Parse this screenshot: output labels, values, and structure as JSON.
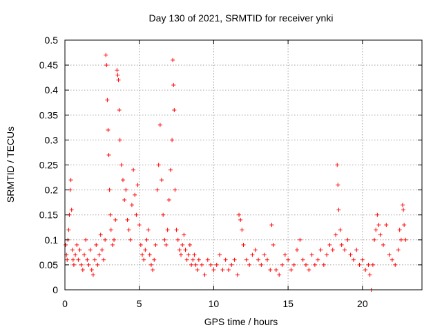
{
  "chart_data": {
    "type": "scatter",
    "title": "Day 130 of 2021, SRMTID for receiver ynki",
    "xlabel": "GPS time / hours",
    "ylabel": "SRMTID / TECUs",
    "xlim": [
      0,
      24
    ],
    "ylim": [
      0,
      0.5
    ],
    "xticks": [
      0,
      5,
      10,
      15,
      20
    ],
    "xtick_labels": [
      "0",
      "5",
      "10",
      "15",
      "20"
    ],
    "yticks": [
      0,
      0.05,
      0.1,
      0.15,
      0.2,
      0.25,
      0.3,
      0.35,
      0.4,
      0.45,
      0.5
    ],
    "ytick_labels": [
      "0",
      "0.05",
      "0.1",
      "0.15",
      "0.2",
      "0.25",
      "0.3",
      "0.35",
      "0.4",
      "0.45",
      "0.5"
    ],
    "grid": true,
    "marker": "plus",
    "color": "#ff0000",
    "series": [
      {
        "name": "SRMTID",
        "points": [
          [
            0.05,
            0.09
          ],
          [
            0.1,
            0.07
          ],
          [
            0.15,
            0.06
          ],
          [
            0.2,
            0.1
          ],
          [
            0.25,
            0.12
          ],
          [
            0.3,
            0.15
          ],
          [
            0.35,
            0.2
          ],
          [
            0.4,
            0.22
          ],
          [
            0.45,
            0.16
          ],
          [
            0.5,
            0.08
          ],
          [
            0.55,
            0.06
          ],
          [
            0.6,
            0.05
          ],
          [
            0.7,
            0.07
          ],
          [
            0.8,
            0.09
          ],
          [
            0.9,
            0.06
          ],
          [
            1.0,
            0.08
          ],
          [
            1.1,
            0.05
          ],
          [
            1.2,
            0.04
          ],
          [
            1.3,
            0.07
          ],
          [
            1.4,
            0.1
          ],
          [
            1.5,
            0.06
          ],
          [
            1.6,
            0.05
          ],
          [
            1.7,
            0.08
          ],
          [
            1.8,
            0.04
          ],
          [
            1.9,
            0.03
          ],
          [
            2.0,
            0.06
          ],
          [
            2.1,
            0.09
          ],
          [
            2.2,
            0.05
          ],
          [
            2.3,
            0.07
          ],
          [
            2.4,
            0.11
          ],
          [
            2.5,
            0.08
          ],
          [
            2.6,
            0.06
          ],
          [
            2.7,
            0.1
          ],
          [
            2.75,
            0.47
          ],
          [
            2.8,
            0.45
          ],
          [
            2.85,
            0.38
          ],
          [
            2.9,
            0.32
          ],
          [
            2.95,
            0.27
          ],
          [
            3.0,
            0.2
          ],
          [
            3.05,
            0.15
          ],
          [
            3.1,
            0.12
          ],
          [
            3.2,
            0.09
          ],
          [
            3.3,
            0.1
          ],
          [
            3.4,
            0.14
          ],
          [
            3.5,
            0.44
          ],
          [
            3.55,
            0.43
          ],
          [
            3.6,
            0.42
          ],
          [
            3.65,
            0.36
          ],
          [
            3.7,
            0.3
          ],
          [
            3.8,
            0.25
          ],
          [
            3.9,
            0.22
          ],
          [
            4.0,
            0.18
          ],
          [
            4.1,
            0.2
          ],
          [
            4.2,
            0.14
          ],
          [
            4.3,
            0.12
          ],
          [
            4.4,
            0.1
          ],
          [
            4.5,
            0.17
          ],
          [
            4.6,
            0.24
          ],
          [
            4.7,
            0.19
          ],
          [
            4.8,
            0.15
          ],
          [
            4.9,
            0.21
          ],
          [
            5.0,
            0.13
          ],
          [
            5.1,
            0.09
          ],
          [
            5.2,
            0.07
          ],
          [
            5.3,
            0.06
          ],
          [
            5.4,
            0.08
          ],
          [
            5.5,
            0.1
          ],
          [
            5.6,
            0.12
          ],
          [
            5.7,
            0.07
          ],
          [
            5.8,
            0.05
          ],
          [
            5.9,
            0.04
          ],
          [
            6.0,
            0.06
          ],
          [
            6.1,
            0.09
          ],
          [
            6.2,
            0.2
          ],
          [
            6.3,
            0.25
          ],
          [
            6.4,
            0.33
          ],
          [
            6.5,
            0.22
          ],
          [
            6.6,
            0.15
          ],
          [
            6.7,
            0.1
          ],
          [
            6.8,
            0.09
          ],
          [
            6.9,
            0.12
          ],
          [
            7.0,
            0.18
          ],
          [
            7.1,
            0.24
          ],
          [
            7.2,
            0.3
          ],
          [
            7.25,
            0.46
          ],
          [
            7.3,
            0.41
          ],
          [
            7.35,
            0.36
          ],
          [
            7.4,
            0.2
          ],
          [
            7.5,
            0.12
          ],
          [
            7.6,
            0.1
          ],
          [
            7.7,
            0.08
          ],
          [
            7.8,
            0.07
          ],
          [
            7.9,
            0.09
          ],
          [
            8.0,
            0.11
          ],
          [
            8.1,
            0.08
          ],
          [
            8.2,
            0.06
          ],
          [
            8.3,
            0.07
          ],
          [
            8.4,
            0.09
          ],
          [
            8.5,
            0.05
          ],
          [
            8.6,
            0.06
          ],
          [
            8.7,
            0.07
          ],
          [
            8.8,
            0.05
          ],
          [
            8.9,
            0.04
          ],
          [
            9.0,
            0.06
          ],
          [
            9.2,
            0.05
          ],
          [
            9.4,
            0.03
          ],
          [
            9.6,
            0.06
          ],
          [
            9.8,
            0.05
          ],
          [
            10.0,
            0.04
          ],
          [
            10.2,
            0.05
          ],
          [
            10.4,
            0.07
          ],
          [
            10.6,
            0.04
          ],
          [
            10.8,
            0.06
          ],
          [
            11.0,
            0.04
          ],
          [
            11.2,
            0.05
          ],
          [
            11.4,
            0.06
          ],
          [
            11.6,
            0.03
          ],
          [
            11.7,
            0.15
          ],
          [
            11.8,
            0.14
          ],
          [
            11.9,
            0.12
          ],
          [
            12.0,
            0.09
          ],
          [
            12.2,
            0.06
          ],
          [
            12.4,
            0.05
          ],
          [
            12.6,
            0.07
          ],
          [
            12.8,
            0.08
          ],
          [
            13.0,
            0.06
          ],
          [
            13.2,
            0.05
          ],
          [
            13.4,
            0.07
          ],
          [
            13.6,
            0.06
          ],
          [
            13.8,
            0.04
          ],
          [
            13.9,
            0.13
          ],
          [
            14.0,
            0.09
          ],
          [
            14.2,
            0.04
          ],
          [
            14.4,
            0.03
          ],
          [
            14.6,
            0.05
          ],
          [
            14.8,
            0.07
          ],
          [
            15.0,
            0.06
          ],
          [
            15.2,
            0.04
          ],
          [
            15.4,
            0.05
          ],
          [
            15.6,
            0.08
          ],
          [
            15.8,
            0.1
          ],
          [
            16.0,
            0.06
          ],
          [
            16.2,
            0.05
          ],
          [
            16.4,
            0.04
          ],
          [
            16.6,
            0.07
          ],
          [
            16.8,
            0.05
          ],
          [
            17.0,
            0.06
          ],
          [
            17.2,
            0.08
          ],
          [
            17.4,
            0.05
          ],
          [
            17.6,
            0.07
          ],
          [
            17.8,
            0.09
          ],
          [
            18.0,
            0.08
          ],
          [
            18.2,
            0.11
          ],
          [
            18.3,
            0.25
          ],
          [
            18.35,
            0.21
          ],
          [
            18.4,
            0.16
          ],
          [
            18.5,
            0.12
          ],
          [
            18.6,
            0.09
          ],
          [
            18.8,
            0.08
          ],
          [
            19.0,
            0.1
          ],
          [
            19.2,
            0.07
          ],
          [
            19.4,
            0.06
          ],
          [
            19.6,
            0.08
          ],
          [
            19.8,
            0.05
          ],
          [
            20.0,
            0.06
          ],
          [
            20.2,
            0.04
          ],
          [
            20.4,
            0.05
          ],
          [
            20.5,
            0.03
          ],
          [
            20.6,
            0.0
          ],
          [
            20.7,
            0.05
          ],
          [
            20.8,
            0.1
          ],
          [
            20.9,
            0.12
          ],
          [
            21.0,
            0.15
          ],
          [
            21.1,
            0.13
          ],
          [
            21.2,
            0.11
          ],
          [
            21.4,
            0.09
          ],
          [
            21.6,
            0.13
          ],
          [
            21.8,
            0.07
          ],
          [
            22.0,
            0.06
          ],
          [
            22.2,
            0.05
          ],
          [
            22.4,
            0.08
          ],
          [
            22.5,
            0.12
          ],
          [
            22.6,
            0.1
          ],
          [
            22.7,
            0.17
          ],
          [
            22.75,
            0.16
          ],
          [
            22.8,
            0.13
          ],
          [
            22.9,
            0.1
          ]
        ]
      }
    ]
  }
}
